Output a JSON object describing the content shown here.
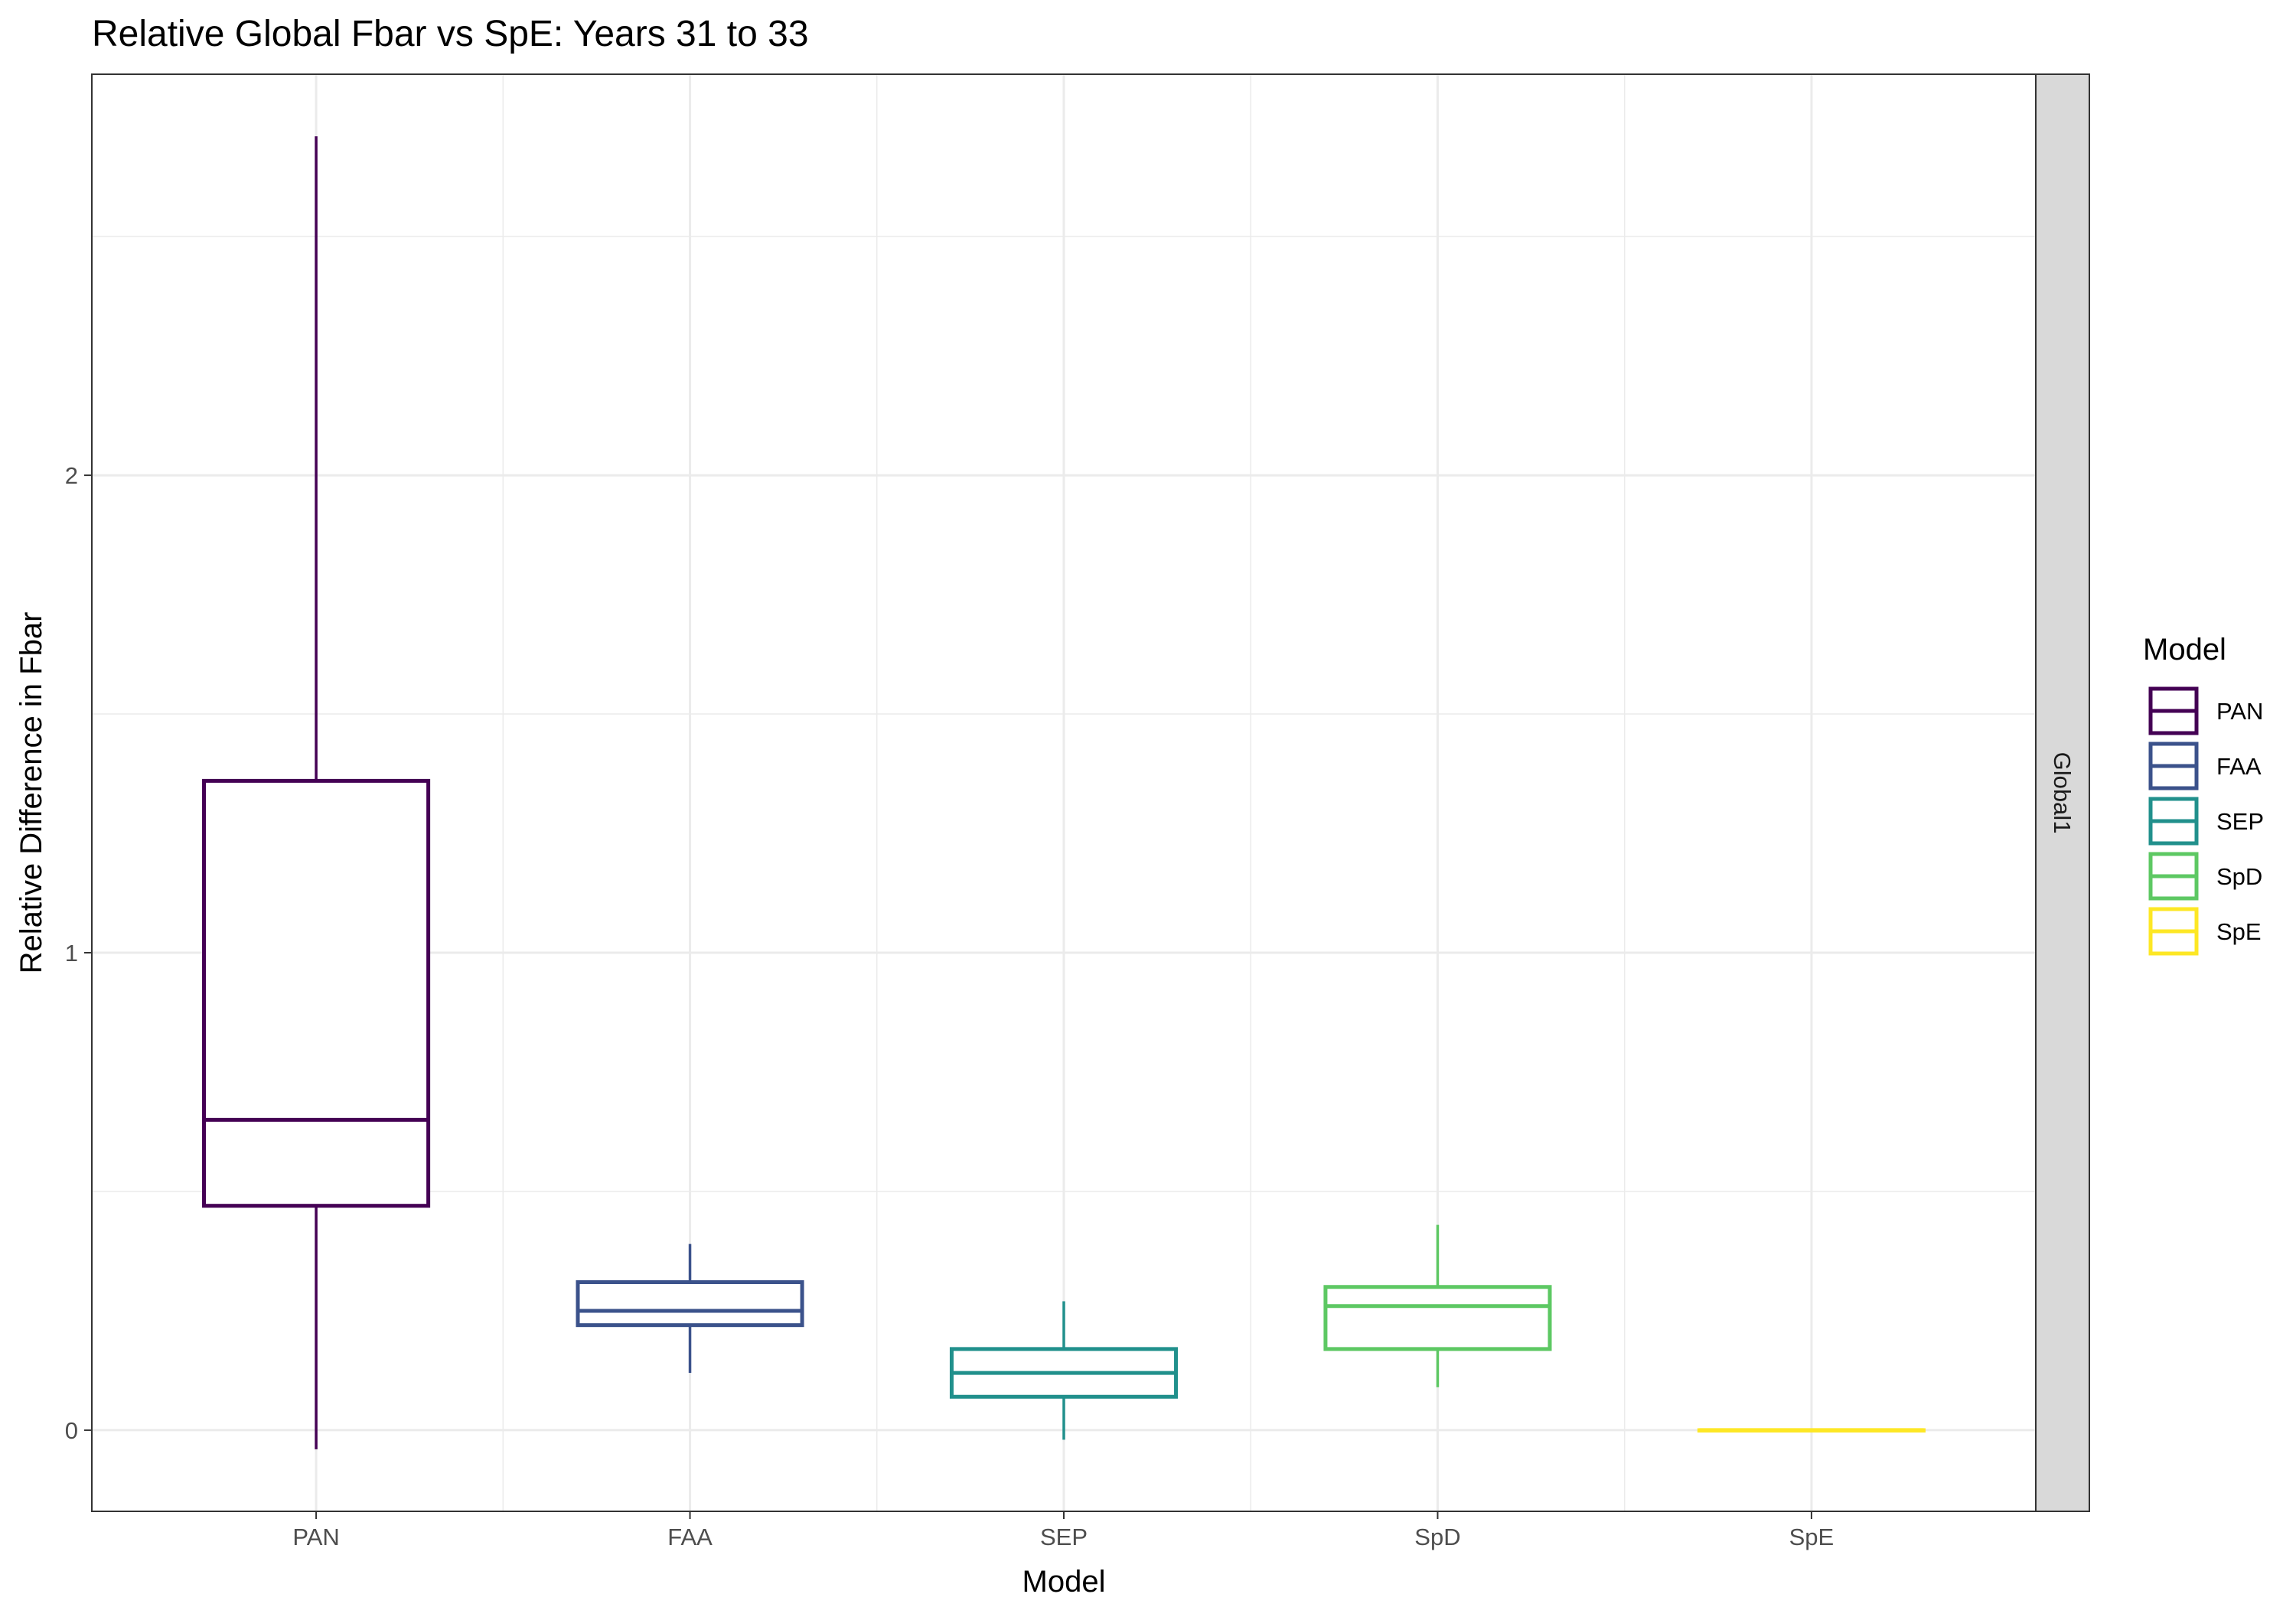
{
  "chart_data": {
    "type": "box",
    "title": "Relative Global Fbar vs SpE: Years 31 to 33",
    "xlabel": "Model",
    "ylabel": "Relative Difference in Fbar",
    "categories": [
      "PAN",
      "FAA",
      "SEP",
      "SpD",
      "SpE"
    ],
    "yticks": [
      "0",
      "1",
      "2"
    ],
    "ylim": [
      -0.17,
      2.84
    ],
    "grid": true,
    "facet_label": "Global1",
    "legend": {
      "title": "Model",
      "position": "right",
      "entries": [
        "PAN",
        "FAA",
        "SEP",
        "SpD",
        "SpE"
      ]
    },
    "series": [
      {
        "name": "PAN",
        "color": "#440154",
        "whisker_low": -0.04,
        "q1": 0.47,
        "median": 0.65,
        "q3": 1.36,
        "whisker_high": 2.71
      },
      {
        "name": "FAA",
        "color": "#3B528B",
        "whisker_low": 0.12,
        "q1": 0.22,
        "median": 0.25,
        "q3": 0.31,
        "whisker_high": 0.39
      },
      {
        "name": "SEP",
        "color": "#21908C",
        "whisker_low": -0.02,
        "q1": 0.07,
        "median": 0.12,
        "q3": 0.17,
        "whisker_high": 0.27
      },
      {
        "name": "SpD",
        "color": "#5DC863",
        "whisker_low": 0.09,
        "q1": 0.17,
        "median": 0.26,
        "q3": 0.3,
        "whisker_high": 0.43
      },
      {
        "name": "SpE",
        "color": "#FDE725",
        "whisker_low": 0.0,
        "q1": 0.0,
        "median": 0.0,
        "q3": 0.0,
        "whisker_high": 0.0
      }
    ]
  }
}
